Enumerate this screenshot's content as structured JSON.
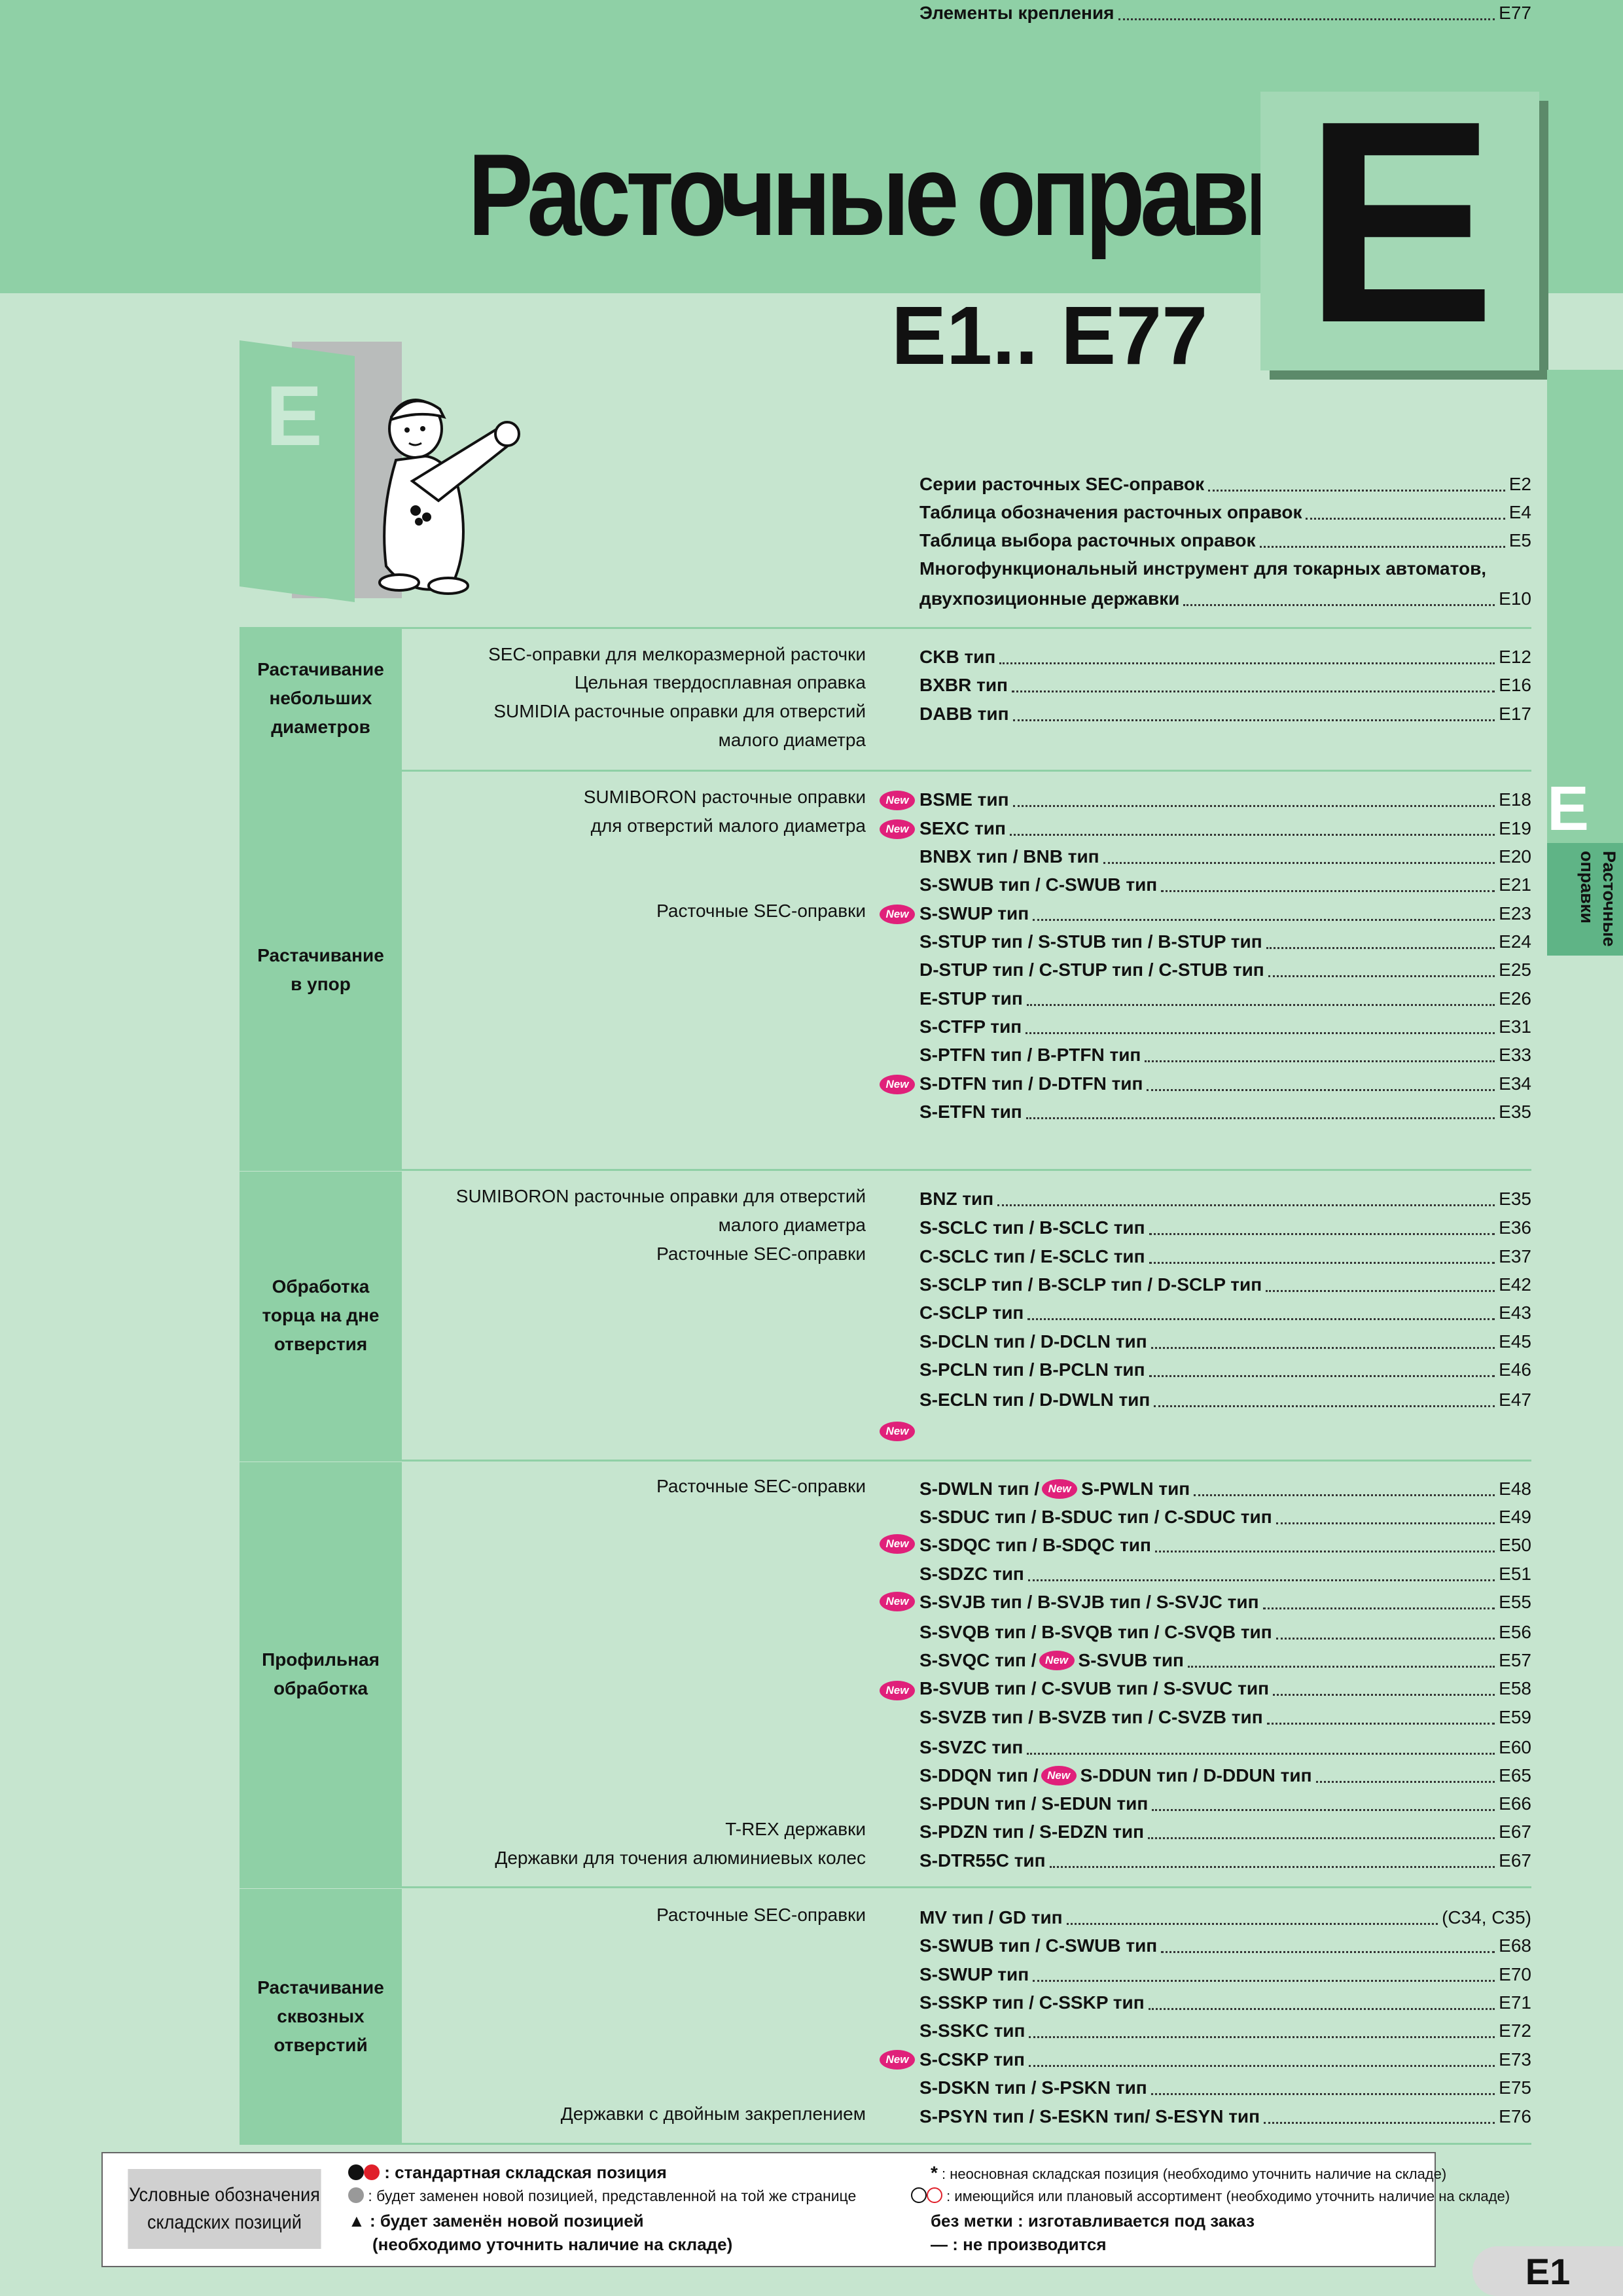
{
  "header": {
    "title": "Расточные оправки",
    "subtitle": "E1.. E77",
    "section_letter": "E"
  },
  "side_tab": {
    "letter": "E",
    "label": "Расточные\nоправки"
  },
  "door_letter": "E",
  "intro": [
    {
      "name": "Серии расточных SEC-оправок",
      "page": "E2"
    },
    {
      "name": "Таблица обозначения расточных оправок",
      "page": "E4"
    },
    {
      "name": "Таблица выбора расточных оправок",
      "page": "E5"
    },
    {
      "name": "Многофункциональный инструмент для токарных автоматов,",
      "page": ""
    },
    {
      "name": "двухпозиционные державки",
      "page": "E10"
    }
  ],
  "new_badge": "New",
  "categories": [
    {
      "label": "Растачивание\nнебольших\nдиаметров"
    },
    {
      "label": "Растачивание\nв упор"
    },
    {
      "label": "Обработка\nторца на дне\nотверстия"
    },
    {
      "label": "Профильная\nобработка"
    },
    {
      "label": "Растачивание\nсквозных\nотверстий"
    }
  ],
  "descriptions": [
    "SEC-оправки для мелкоразмерной расточки",
    "Цельная твердосплавная оправка",
    "SUMIDIA расточные оправки для отверстий",
    "малого диаметра",
    "SUMIBORON расточные оправки",
    "для отверстий малого диаметра",
    "Расточные SEC-оправки",
    "SUMIBORON расточные оправки для отверстий",
    "малого диаметра",
    "Расточные SEC-оправки",
    "Расточные SEC-оправки",
    "T-REX державки",
    "Державки для точения алюминиевых колес",
    "Расточные SEC-оправки",
    "Державки с двойным закреплением"
  ],
  "entries": [
    {
      "name": "CKB тип",
      "page": "E12"
    },
    {
      "name": "BXBR тип",
      "page": "E16"
    },
    {
      "name": "DABB тип",
      "page": "E17"
    },
    {
      "name": "BSME тип",
      "page": "E18"
    },
    {
      "name": "SEXC тип",
      "page": "E19"
    },
    {
      "name": "BNBX тип / BNB тип",
      "page": "E20"
    },
    {
      "name": "S-SWUB тип / C-SWUB тип",
      "page": "E21"
    },
    {
      "name": "S-SWUP тип",
      "page": "E23"
    },
    {
      "name": "S-STUP тип / S-STUB тип / B-STUP тип",
      "page": "E24"
    },
    {
      "name": "D-STUP тип / C-STUP тип / C-STUB тип",
      "page": "E25"
    },
    {
      "name": "E-STUP тип",
      "page": "E26"
    },
    {
      "name": "S-CTFP тип",
      "page": "E31"
    },
    {
      "name": "S-PTFN тип / B-PTFN тип",
      "page": "E33"
    },
    {
      "name": "S-DTFN тип / D-DTFN тип",
      "page": "E34"
    },
    {
      "name": "S-ETFN тип",
      "page": "E35"
    },
    {
      "name": "BNZ тип",
      "page": "E35"
    },
    {
      "name": "S-SCLC тип / B-SCLC тип",
      "page": "E36"
    },
    {
      "name": "C-SCLC тип / E-SCLC тип",
      "page": "E37"
    },
    {
      "name": "S-SCLP тип / B-SCLP тип / D-SCLP тип",
      "page": "E42"
    },
    {
      "name": "C-SCLP тип",
      "page": "E43"
    },
    {
      "name": "S-DCLN тип / D-DCLN тип",
      "page": "E45"
    },
    {
      "name": "S-PCLN тип / B-PCLN тип",
      "page": "E46"
    },
    {
      "name": "S-ECLN тип / D-DWLN тип",
      "page": "E47"
    },
    {
      "name": "S-DWLN тип /",
      "name2": "S-PWLN тип",
      "page": "E48"
    },
    {
      "name": "S-SDUC тип / B-SDUC тип / C-SDUC тип",
      "page": "E49"
    },
    {
      "name": "S-SDQC тип / B-SDQC тип",
      "page": "E50"
    },
    {
      "name": "S-SDZC тип",
      "page": "E51"
    },
    {
      "name": "S-SVJB тип / B-SVJB тип / S-SVJC тип",
      "page": "E55"
    },
    {
      "name": "S-SVQB тип / B-SVQB тип / C-SVQB тип",
      "page": "E56"
    },
    {
      "name": "S-SVQC тип /",
      "name2": "S-SVUB тип",
      "page": "E57"
    },
    {
      "name": "B-SVUB тип / C-SVUB тип / S-SVUC тип",
      "page": "E58"
    },
    {
      "name": "S-SVZB тип / B-SVZB тип / C-SVZB тип",
      "page": "E59"
    },
    {
      "name": "S-SVZC тип",
      "page": "E60"
    },
    {
      "name": "S-DDQN тип /",
      "name2": "S-DDUN тип / D-DDUN тип",
      "page": "E65"
    },
    {
      "name": "S-PDUN тип / S-EDUN тип",
      "page": "E66"
    },
    {
      "name": "S-PDZN тип / S-EDZN тип",
      "page": "E67"
    },
    {
      "name": "S-DTR55C тип",
      "page": "E67"
    },
    {
      "name": "MV тип / GD тип",
      "page": "(C34, C35)"
    },
    {
      "name": "S-SWUB тип / C-SWUB тип",
      "page": "E68"
    },
    {
      "name": "S-SWUP тип",
      "page": "E70"
    },
    {
      "name": "S-SSKP тип / C-SSKP тип",
      "page": "E71"
    },
    {
      "name": "S-SSKC тип",
      "page": "E72"
    },
    {
      "name": "S-CSKP тип",
      "page": "E73"
    },
    {
      "name": "S-DSKN тип / S-PSKN тип",
      "page": "E75"
    },
    {
      "name": "S-PSYN тип / S-ESKN тип/ S-ESYN тип",
      "page": "E76"
    },
    {
      "name": "Элементы крепления",
      "page": "E77"
    }
  ],
  "legend": {
    "title": "Условные обозначения\nскладских позиций",
    "l1": ": стандартная складская позиция",
    "l2": ": будет заменен новой позицией, представленной на той же странице",
    "l3": ": будет заменён новой позицией",
    "l4": "(необходимо уточнить наличие на складе)",
    "r1_sym": "*",
    "r1": ": неосновная складская позиция (необходимо уточнить наличие на складе)",
    "r2": ": имеющийся или плановый ассортимент (необходимо уточнить наличие на складе)",
    "r3": "без метки : изготавливается под заказ",
    "r4_sym": "—",
    "r4": ": не производится",
    "colors": {
      "black": "#111111",
      "red": "#e0202a",
      "grey": "#999999"
    }
  },
  "page_number": "E1"
}
